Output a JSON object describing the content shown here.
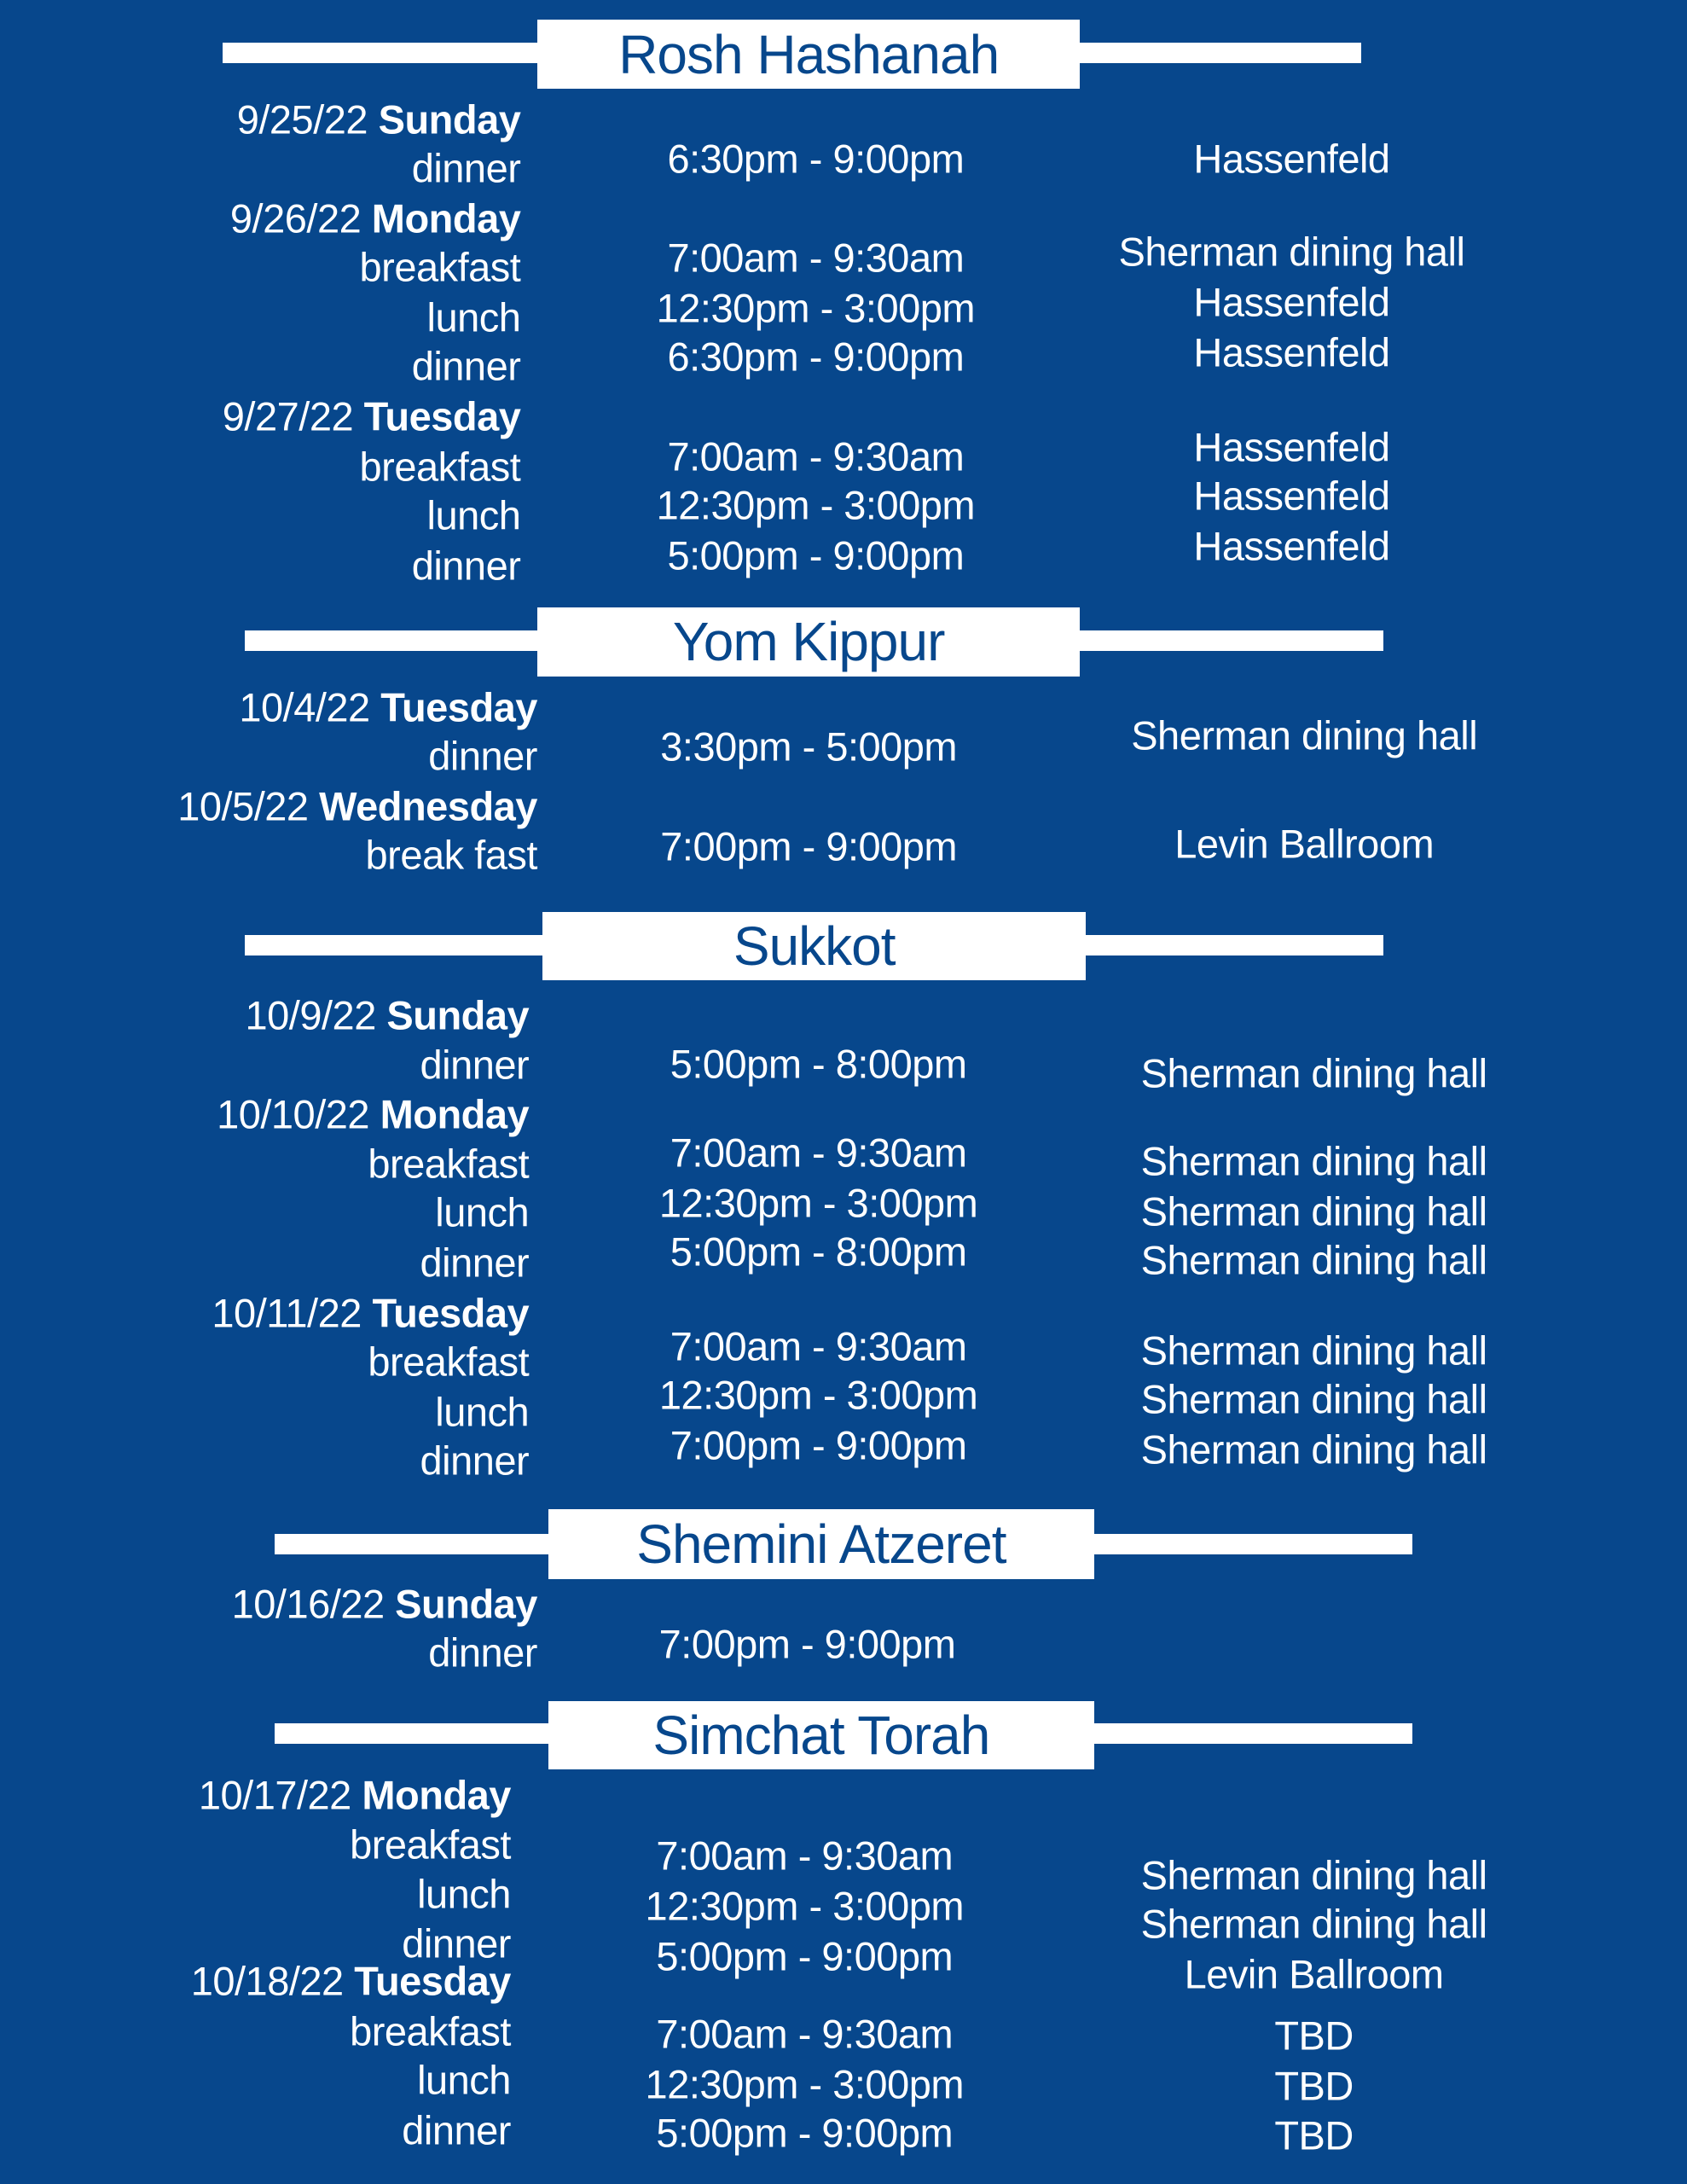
{
  "colors": {
    "background": "#07478c",
    "banner": "#ffffff",
    "banner_text": "#07478c",
    "text": "#ffffff"
  },
  "sections": [
    {
      "title": "Rosh Hashanah",
      "left": [
        {
          "date": "9/25/22",
          "day": "Sunday"
        },
        {
          "meal": "dinner"
        },
        {
          "date": "9/26/22",
          "day": "Monday"
        },
        {
          "meal": "breakfast"
        },
        {
          "meal": "lunch"
        },
        {
          "meal": "dinner"
        },
        {
          "date": "9/27/22",
          "day": "Tuesday"
        },
        {
          "meal": "breakfast"
        },
        {
          "meal": "lunch"
        },
        {
          "meal": "dinner"
        }
      ],
      "times": [
        "6:30pm - 9:00pm",
        "7:00am - 9:30am",
        "12:30pm - 3:00pm",
        "6:30pm - 9:00pm",
        "7:00am - 9:30am",
        "12:30pm - 3:00pm",
        "5:00pm - 9:00pm"
      ],
      "locations": [
        "Hassenfeld",
        "Sherman dining hall",
        "Hassenfeld",
        "Hassenfeld",
        "Hassenfeld",
        "Hassenfeld",
        "Hassenfeld"
      ]
    },
    {
      "title": "Yom Kippur",
      "left": [
        {
          "date": "10/4/22",
          "day": "Tuesday"
        },
        {
          "meal": "dinner"
        },
        {
          "date": "10/5/22",
          "day": "Wednesday"
        },
        {
          "meal": "break fast"
        }
      ],
      "times": [
        "3:30pm - 5:00pm",
        "7:00pm - 9:00pm"
      ],
      "locations": [
        "Sherman dining hall",
        "Levin Ballroom"
      ]
    },
    {
      "title": "Sukkot",
      "left": [
        {
          "date": "10/9/22",
          "day": "Sunday"
        },
        {
          "meal": "dinner"
        },
        {
          "date": "10/10/22",
          "day": "Monday"
        },
        {
          "meal": "breakfast"
        },
        {
          "meal": "lunch"
        },
        {
          "meal": "dinner"
        },
        {
          "date": "10/11/22",
          "day": "Tuesday"
        },
        {
          "meal": "breakfast"
        },
        {
          "meal": "lunch"
        },
        {
          "meal": "dinner"
        }
      ],
      "times": [
        "5:00pm - 8:00pm",
        "7:00am - 9:30am",
        "12:30pm - 3:00pm",
        "5:00pm - 8:00pm",
        "7:00am - 9:30am",
        "12:30pm - 3:00pm",
        "7:00pm - 9:00pm"
      ],
      "locations": [
        "Sherman dining hall",
        "Sherman dining hall",
        "Sherman dining hall",
        "Sherman dining hall",
        "Sherman dining hall",
        "Sherman dining hall",
        "Sherman dining hall"
      ]
    },
    {
      "title": "Shemini Atzeret",
      "left": [
        {
          "date": "10/16/22",
          "day": "Sunday"
        },
        {
          "meal": "dinner"
        }
      ],
      "times": [
        "7:00pm - 9:00pm"
      ],
      "locations": []
    },
    {
      "title": "Simchat Torah",
      "left": [
        {
          "date": "10/17/22",
          "day": "Monday"
        },
        {
          "meal": "breakfast"
        },
        {
          "meal": "lunch"
        },
        {
          "meal": "dinner"
        },
        {
          "date": "10/18/22",
          "day": "Tuesday"
        },
        {
          "meal": "breakfast"
        },
        {
          "meal": "lunch"
        },
        {
          "meal": "dinner"
        }
      ],
      "times": [
        "7:00am - 9:30am",
        "12:30pm - 3:00pm",
        "5:00pm - 9:00pm",
        "7:00am - 9:30am",
        "12:30pm - 3:00pm",
        "5:00pm - 9:00pm"
      ],
      "locations": [
        "Sherman dining hall",
        "Sherman dining hall",
        "Levin Ballroom",
        "TBD",
        "TBD",
        "TBD"
      ]
    }
  ]
}
